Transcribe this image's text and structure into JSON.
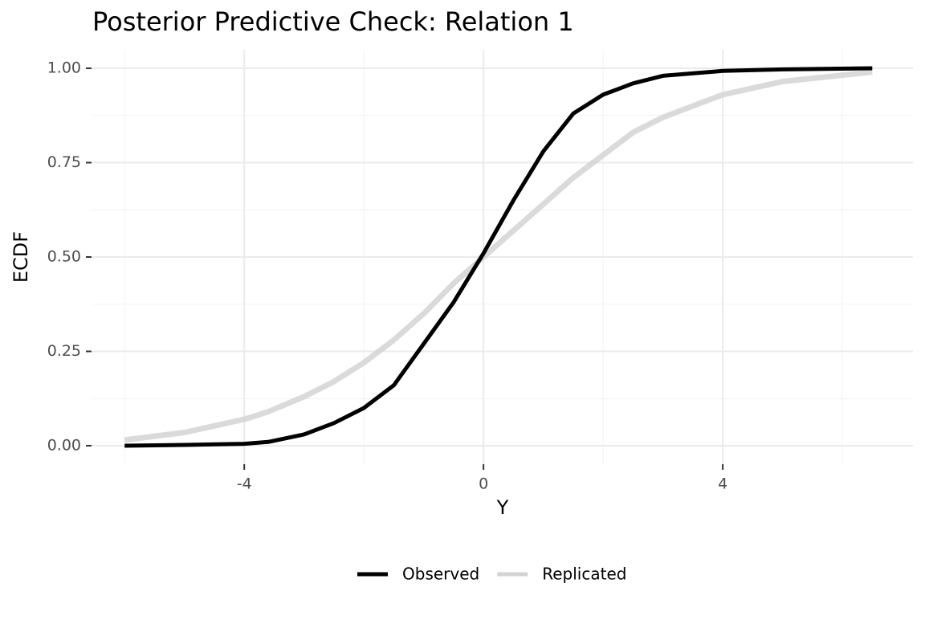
{
  "chart_data": {
    "type": "line",
    "title": "Posterior Predictive Check: Relation 1",
    "x_label": "Y",
    "y_label": "ECDF",
    "x": [
      -6,
      -5,
      -4,
      -3.6,
      -3,
      -2.5,
      -2,
      -1.5,
      -1,
      -0.5,
      0,
      0.5,
      1,
      1.5,
      2,
      2.5,
      3,
      4,
      5,
      6.5
    ],
    "series": [
      {
        "name": "Replicated",
        "color": "#d3d3d3",
        "values": [
          0.015,
          0.035,
          0.07,
          0.09,
          0.13,
          0.17,
          0.22,
          0.28,
          0.35,
          0.43,
          0.5,
          0.57,
          0.64,
          0.71,
          0.77,
          0.83,
          0.87,
          0.93,
          0.965,
          0.99
        ]
      },
      {
        "name": "Observed",
        "color": "#000000",
        "values": [
          0,
          0.002,
          0.005,
          0.01,
          0.03,
          0.06,
          0.1,
          0.16,
          0.27,
          0.38,
          0.51,
          0.65,
          0.78,
          0.88,
          0.93,
          0.96,
          0.98,
          0.993,
          0.997,
          1.0
        ]
      }
    ],
    "xlim": [
      -6.54,
      7.18
    ],
    "ylim": [
      -0.049,
      1.049
    ],
    "xticks": [
      -4,
      0,
      4
    ],
    "yticks": [
      {
        "value": 0,
        "label": "0.00"
      },
      {
        "value": 0.25,
        "label": "0.25"
      },
      {
        "value": 0.5,
        "label": "0.50"
      },
      {
        "value": 0.75,
        "label": "0.75"
      },
      {
        "value": 1,
        "label": "1.00"
      }
    ],
    "x_minor_ticks": [
      -6,
      -2,
      2,
      6
    ],
    "y_minor_ticks": [
      0.125,
      0.375,
      0.625,
      0.875
    ],
    "grid": true,
    "legend_position": "bottom"
  }
}
